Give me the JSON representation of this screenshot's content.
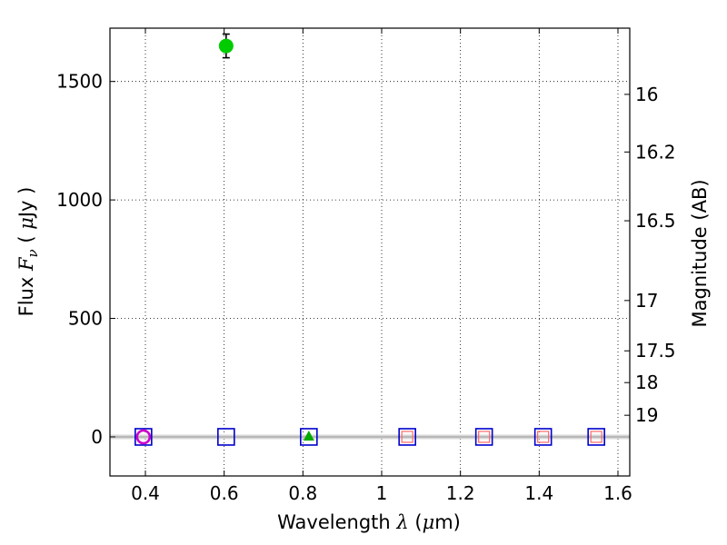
{
  "chart_data": {
    "type": "scatter",
    "xlabel": "Wavelength  λ (μm)",
    "ylabel": "Flux  F_ν  ( μJy )",
    "ylabel_parts": {
      "pre": "Flux  ",
      "sym": "F",
      "sub": "ν",
      "mid": "  ( ",
      "mu": "μ",
      "post": "Jy )"
    },
    "xlabel_parts": {
      "pre": "Wavelength  ",
      "lambda": "λ",
      "mid": " (",
      "mu": "μ",
      "post": "m)"
    },
    "y2label": "Magnitude (AB)",
    "xlim": [
      0.31,
      1.63
    ],
    "ylim": [
      -165,
      1725
    ],
    "grid": true,
    "x_ticks": [
      {
        "value": 0.4,
        "label": "0.4"
      },
      {
        "value": 0.6,
        "label": "0.6"
      },
      {
        "value": 0.8,
        "label": "0.8"
      },
      {
        "value": 1.0,
        "label": "1"
      },
      {
        "value": 1.2,
        "label": "1.2"
      },
      {
        "value": 1.4,
        "label": "1.4"
      },
      {
        "value": 1.6,
        "label": "1.6"
      }
    ],
    "y_ticks": [
      {
        "value": 0,
        "label": "0"
      },
      {
        "value": 500,
        "label": "500"
      },
      {
        "value": 1000,
        "label": "1000"
      },
      {
        "value": 1500,
        "label": "1500"
      }
    ],
    "mag_ticks": [
      {
        "mag": 16,
        "label": "16"
      },
      {
        "mag": 16.2,
        "label": "16.2"
      },
      {
        "mag": 16.5,
        "label": "16.5"
      },
      {
        "mag": 17,
        "label": "17"
      },
      {
        "mag": 17.5,
        "label": "17.5"
      },
      {
        "mag": 18,
        "label": "18"
      },
      {
        "mag": 19,
        "label": "19"
      }
    ],
    "series": [
      {
        "marker": "circle",
        "color": "#00cc00",
        "points": [
          {
            "x": 0.605,
            "y": 1650,
            "yerr": 50
          }
        ]
      },
      {
        "marker": "open-square",
        "color": "#0000cc",
        "points": [
          {
            "x": 0.395,
            "y": 0
          },
          {
            "x": 0.605,
            "y": 0
          },
          {
            "x": 0.815,
            "y": 0
          },
          {
            "x": 1.065,
            "y": 0
          },
          {
            "x": 1.26,
            "y": 0
          },
          {
            "x": 1.41,
            "y": 0
          },
          {
            "x": 1.545,
            "y": 0
          }
        ]
      },
      {
        "marker": "small-square",
        "color": "#ff6666",
        "points": [
          {
            "x": 1.065,
            "y": 0
          },
          {
            "x": 1.26,
            "y": 0
          },
          {
            "x": 1.41,
            "y": 0
          },
          {
            "x": 1.545,
            "y": 0
          }
        ]
      },
      {
        "marker": "open-circle",
        "color": "#cc00cc",
        "points": [
          {
            "x": 0.395,
            "y": 0
          }
        ]
      },
      {
        "marker": "triangle",
        "color": "#00aa00",
        "points": [
          {
            "x": 0.815,
            "y": 0
          }
        ]
      }
    ],
    "zero_line": {
      "y": 0,
      "color": "#999999"
    }
  }
}
